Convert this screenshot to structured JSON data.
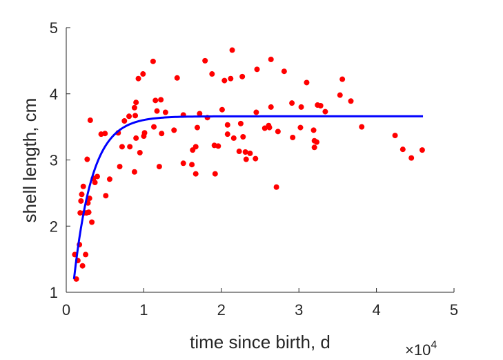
{
  "chart_data": {
    "type": "scatter",
    "title": "",
    "xlabel": "time since birth, d",
    "ylabel": "shell length, cm",
    "x_multiplier_label": {
      "base": "×10",
      "exp": "4"
    },
    "xlim": [
      0,
      50000
    ],
    "ylim": [
      1,
      5
    ],
    "x_ticks": [
      0,
      10000,
      20000,
      30000,
      40000,
      50000
    ],
    "x_tick_labels": [
      "0",
      "1",
      "2",
      "3",
      "4",
      "5"
    ],
    "y_ticks": [
      1,
      2,
      3,
      4,
      5
    ],
    "y_tick_labels": [
      "1",
      "2",
      "3",
      "4",
      "5"
    ],
    "grid": false,
    "legend": "none",
    "colors": {
      "points": "#ff0000",
      "curve": "#0000ff",
      "axis": "#262626"
    },
    "series": [
      {
        "type": "scatter",
        "points": [
          [
            1100,
            1.57
          ],
          [
            1300,
            1.2
          ],
          [
            1500,
            1.48
          ],
          [
            1700,
            1.72
          ],
          [
            1800,
            2.2
          ],
          [
            1900,
            2.38
          ],
          [
            2000,
            2.48
          ],
          [
            2100,
            1.4
          ],
          [
            2200,
            2.6
          ],
          [
            2300,
            2.2
          ],
          [
            2500,
            1.57
          ],
          [
            2600,
            2.2
          ],
          [
            2700,
            3.01
          ],
          [
            2800,
            2.35
          ],
          [
            2900,
            2.21
          ],
          [
            3000,
            2.42
          ],
          [
            3100,
            3.6
          ],
          [
            3300,
            2.06
          ],
          [
            3500,
            2.72
          ],
          [
            3700,
            2.66
          ],
          [
            4000,
            2.75
          ],
          [
            4500,
            3.39
          ],
          [
            5000,
            3.4
          ],
          [
            5100,
            2.46
          ],
          [
            5600,
            2.71
          ],
          [
            6700,
            3.41
          ],
          [
            6900,
            2.9
          ],
          [
            7200,
            3.2
          ],
          [
            7500,
            3.59
          ],
          [
            8100,
            3.66
          ],
          [
            8200,
            3.2
          ],
          [
            8800,
            3.79
          ],
          [
            8800,
            2.82
          ],
          [
            8900,
            3.67
          ],
          [
            9000,
            3.87
          ],
          [
            9000,
            3.33
          ],
          [
            9300,
            4.23
          ],
          [
            9500,
            3.11
          ],
          [
            9900,
            4.3
          ],
          [
            10000,
            3.36
          ],
          [
            10100,
            3.41
          ],
          [
            11200,
            4.49
          ],
          [
            11300,
            3.5
          ],
          [
            11500,
            3.9
          ],
          [
            11700,
            3.74
          ],
          [
            12000,
            2.9
          ],
          [
            12200,
            3.91
          ],
          [
            12300,
            3.4
          ],
          [
            12800,
            3.72
          ],
          [
            13900,
            3.45
          ],
          [
            14300,
            4.24
          ],
          [
            15100,
            3.68
          ],
          [
            15100,
            2.95
          ],
          [
            16200,
            2.93
          ],
          [
            16300,
            3.15
          ],
          [
            16700,
            3.2
          ],
          [
            16700,
            2.79
          ],
          [
            16900,
            3.49
          ],
          [
            17200,
            3.7
          ],
          [
            17900,
            4.5
          ],
          [
            18200,
            3.64
          ],
          [
            18800,
            4.3
          ],
          [
            19100,
            3.22
          ],
          [
            19200,
            2.79
          ],
          [
            19600,
            3.21
          ],
          [
            20100,
            3.76
          ],
          [
            20400,
            4.2
          ],
          [
            20800,
            3.53
          ],
          [
            20800,
            3.39
          ],
          [
            21200,
            4.23
          ],
          [
            21400,
            4.66
          ],
          [
            21600,
            3.33
          ],
          [
            22300,
            3.13
          ],
          [
            22500,
            3.55
          ],
          [
            22700,
            4.26
          ],
          [
            22800,
            3.35
          ],
          [
            23100,
            3.12
          ],
          [
            23200,
            3.01
          ],
          [
            23700,
            3.1
          ],
          [
            24400,
            3.02
          ],
          [
            24500,
            3.72
          ],
          [
            24600,
            4.37
          ],
          [
            25600,
            3.48
          ],
          [
            26100,
            3.52
          ],
          [
            26200,
            3.49
          ],
          [
            26400,
            3.8
          ],
          [
            26400,
            4.52
          ],
          [
            27100,
            2.59
          ],
          [
            27300,
            3.43
          ],
          [
            28100,
            4.34
          ],
          [
            29100,
            3.86
          ],
          [
            29200,
            3.34
          ],
          [
            30200,
            3.49
          ],
          [
            30300,
            3.8
          ],
          [
            31000,
            4.17
          ],
          [
            31900,
            3.45
          ],
          [
            32000,
            3.29
          ],
          [
            32000,
            3.19
          ],
          [
            32300,
            3.27
          ],
          [
            32400,
            3.83
          ],
          [
            32800,
            3.82
          ],
          [
            33400,
            3.73
          ],
          [
            35300,
            3.98
          ],
          [
            35600,
            4.22
          ],
          [
            36700,
            3.89
          ],
          [
            38100,
            3.5
          ],
          [
            42400,
            3.37
          ],
          [
            43400,
            3.16
          ],
          [
            44500,
            3.03
          ],
          [
            45900,
            3.15
          ]
        ]
      },
      {
        "type": "line",
        "model": {
          "Linf": 3.66,
          "L0": 1.2,
          "k": 0.00042,
          "t0": 1000,
          "t_end": 46000
        }
      }
    ]
  }
}
